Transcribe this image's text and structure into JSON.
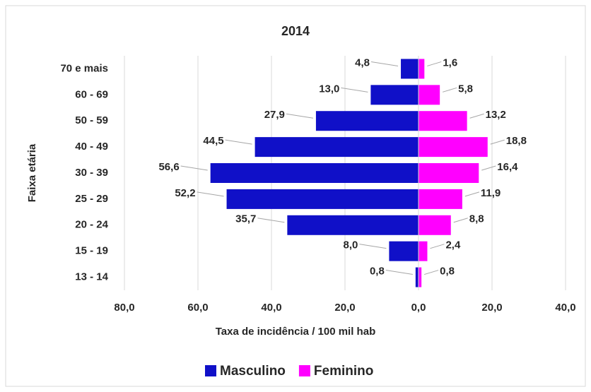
{
  "chart_data": {
    "type": "bar",
    "orientation": "horizontal",
    "title": "2014",
    "x_label": "Taxa de incidência / 100 mil hab",
    "y_label": "Faixa etária",
    "categories": [
      "70 e mais",
      "60 - 69",
      "50 - 59",
      "40 - 49",
      "30 - 39",
      "25 - 29",
      "20 - 24",
      "15 - 19",
      "13 - 14"
    ],
    "series": [
      {
        "name": "Masculino",
        "color": "#1010c8",
        "values": [
          -4.8,
          -13.0,
          -27.9,
          -44.5,
          -56.6,
          -52.2,
          -35.7,
          -8.0,
          -0.8
        ],
        "value_labels": [
          "4,8",
          "13,0",
          "27,9",
          "44,5",
          "56,6",
          "52,2",
          "35,7",
          "8,0",
          "0,8"
        ]
      },
      {
        "name": "Feminino",
        "color": "#ff00ff",
        "values": [
          1.6,
          5.8,
          13.2,
          18.8,
          16.4,
          11.9,
          8.8,
          2.4,
          0.8
        ],
        "value_labels": [
          "1,6",
          "5,8",
          "13,2",
          "18,8",
          "16,4",
          "11,9",
          "8,8",
          "2,4",
          "0,8"
        ]
      }
    ],
    "xlim": [
      -80,
      40
    ],
    "xticks": [
      {
        "value": -80,
        "label": "80,0"
      },
      {
        "value": -60,
        "label": "60,0"
      },
      {
        "value": -40,
        "label": "40,0"
      },
      {
        "value": -20,
        "label": "20,0"
      },
      {
        "value": 0,
        "label": "0,0"
      },
      {
        "value": 20,
        "label": "20,0"
      },
      {
        "value": 40,
        "label": "40,0"
      }
    ],
    "grid": true,
    "legend": "bottom"
  }
}
